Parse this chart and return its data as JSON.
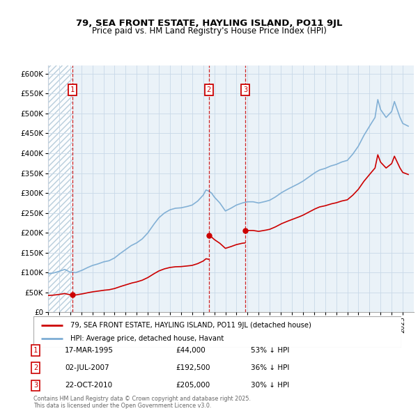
{
  "title": "79, SEA FRONT ESTATE, HAYLING ISLAND, PO11 9JL",
  "subtitle": "Price paid vs. HM Land Registry's House Price Index (HPI)",
  "property_label": "79, SEA FRONT ESTATE, HAYLING ISLAND, PO11 9JL (detached house)",
  "hpi_label": "HPI: Average price, detached house, Havant",
  "sale_markers": [
    {
      "num": 1,
      "date": "17-MAR-1995",
      "price": 44000,
      "pct": "53%",
      "x_year": 1995.21
    },
    {
      "num": 2,
      "date": "02-JUL-2007",
      "price": 192500,
      "pct": "36%",
      "x_year": 2007.5
    },
    {
      "num": 3,
      "date": "22-OCT-2010",
      "price": 205000,
      "pct": "30%",
      "x_year": 2010.8
    }
  ],
  "footer": "Contains HM Land Registry data © Crown copyright and database right 2025.\nThis data is licensed under the Open Government Licence v3.0.",
  "property_color": "#cc0000",
  "hpi_color": "#7dadd4",
  "marker_color": "#cc0000",
  "ylim": [
    0,
    620000
  ],
  "xlim_start": 1993,
  "xlim_end": 2026,
  "grid_color": "#c8d8e8",
  "bg_color": "#dce8f0"
}
